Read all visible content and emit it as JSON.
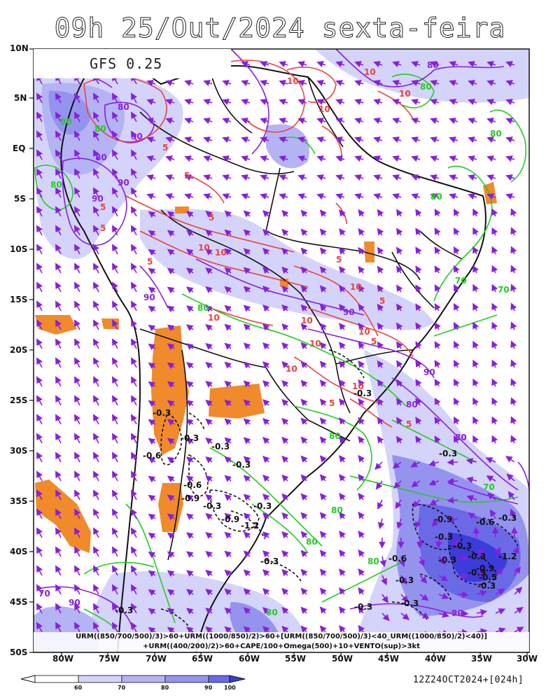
{
  "title": "09h 25/Out/2024 sexta-feira",
  "model": "GFS 0.25",
  "lat_labels": [
    "10N",
    "5N",
    "EQ",
    "5S",
    "10S",
    "15S",
    "20S",
    "25S",
    "30S",
    "35S",
    "40S",
    "45S",
    "50S"
  ],
  "lon_labels": [
    "80W",
    "75W",
    "70W",
    "65W",
    "60W",
    "55W",
    "50W",
    "45W",
    "40W",
    "35W",
    "30W"
  ],
  "formula_line1": "URM((850/700/500)/3)>60+URM((1000/850)/2)>60+[URM((850/700/500)/3)<40_URM((1000/850)/2)<40)]",
  "formula_line2": "+URM((400/200)/2)>60+CAPE/100+Omega(500)+10+VENTO(sup)>3kt",
  "run": "12Z24OCT2024+[024h]",
  "colorbar": {
    "levels": [
      "60",
      "70",
      "80",
      "90",
      "100"
    ],
    "colors": [
      "#ffffff",
      "#d4d4fa",
      "#b4b4f4",
      "#9494ee",
      "#6a6ae6",
      "#3c3cdc"
    ]
  },
  "colors": {
    "humidity_green": "#22cc22",
    "humidity_purple": "#8a1ee0",
    "cape_red": "#ee4040",
    "orange_area": "#f08a2a",
    "wind_vectors": "#8a1ee0",
    "omega_black": "#111111"
  },
  "contour_labels": {
    "green": [
      "90",
      "80",
      "80",
      "80",
      "80",
      "80",
      "80",
      "80",
      "80",
      "70",
      "70",
      "80",
      "80",
      "80",
      "70"
    ],
    "purple": [
      "80",
      "90",
      "90",
      "90",
      "80",
      "80",
      "90",
      "90",
      "90",
      "90",
      "70",
      "90",
      "80",
      "80"
    ],
    "red": [
      "10",
      "10",
      "10",
      "10",
      "5",
      "5",
      "5",
      "5",
      "5",
      "10",
      "10",
      "10",
      "10",
      "10",
      "10",
      "5",
      "5",
      "10",
      "10",
      "10",
      "5",
      "5",
      "5",
      "5"
    ],
    "omega": [
      "-0.3",
      "-0.3",
      "-0.3",
      "-0.6",
      "-0.3",
      "-0.6",
      "-0.9",
      "-0.3",
      "-0.3",
      "-0.9",
      "-1.2",
      "-0.3",
      "-0.3",
      "-0.6",
      "-0.3",
      "-0.9",
      "-0.3",
      "-0.3",
      "-0.3",
      "-1.2",
      "-0.9",
      "-0.3",
      "-0.3",
      "-0.6",
      "-0.9",
      "-0.3",
      "-0.3",
      "-0.3",
      "-0.3",
      "-0.5",
      "-0.3"
    ]
  }
}
